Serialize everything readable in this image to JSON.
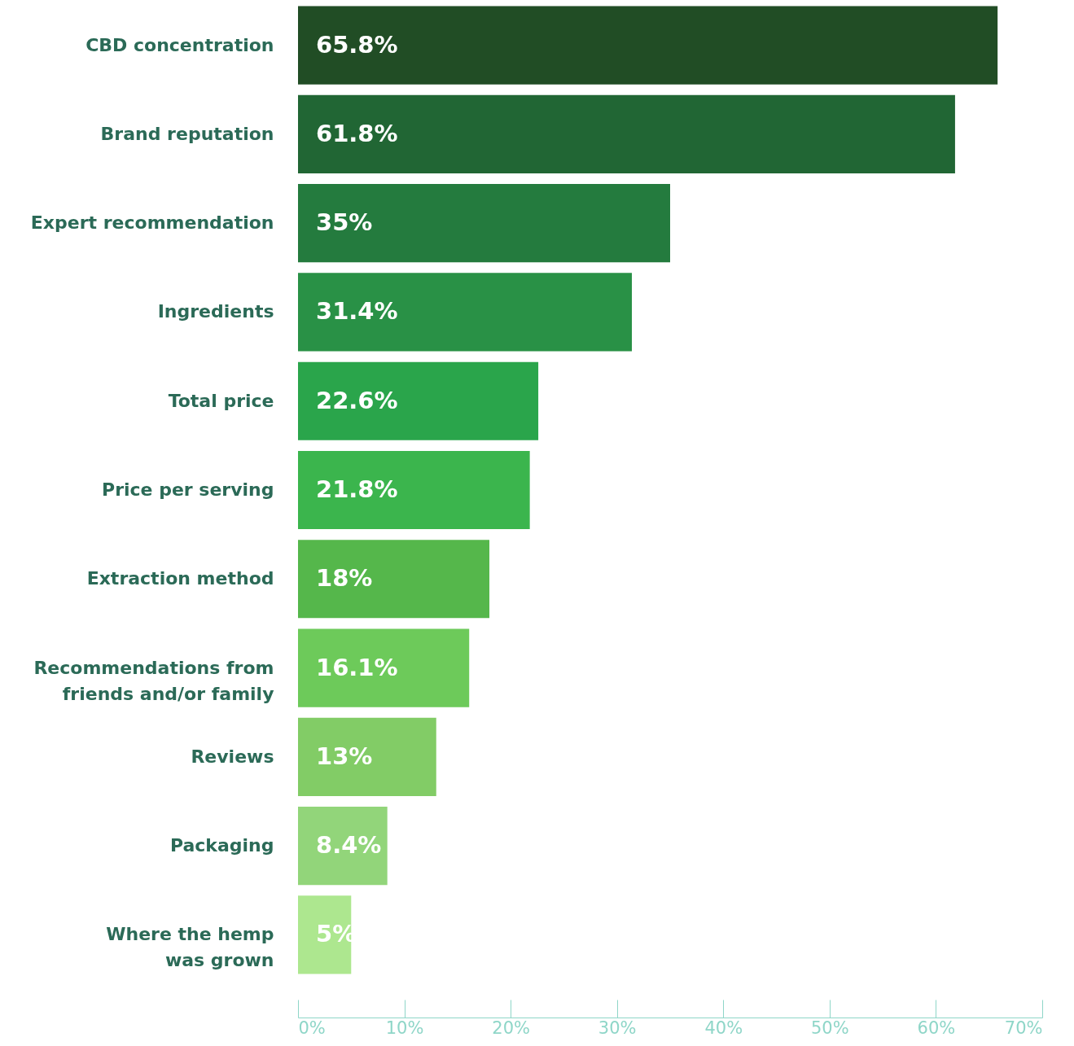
{
  "chart_data": {
    "type": "bar",
    "orientation": "horizontal",
    "categories": [
      "CBD concentration",
      "Brand reputation",
      "Expert recommendation",
      "Ingredients",
      "Total price",
      "Price per serving",
      "Extraction method",
      "Recommendations from friends and/or family",
      "Reviews",
      "Packaging",
      "Where the hemp was grown"
    ],
    "values": [
      65.8,
      61.8,
      35,
      31.4,
      22.6,
      21.8,
      18,
      16.1,
      13,
      8.4,
      5
    ],
    "value_labels": [
      "65.8%",
      "61.8%",
      "35%",
      "31.4%",
      "22.6%",
      "21.8%",
      "18%",
      "16.1%",
      "13%",
      "8.4%",
      "5%"
    ],
    "colors": [
      "#214d25",
      "#216634",
      "#247b3e",
      "#299146",
      "#2aa54b",
      "#3bb54d",
      "#55b74b",
      "#6dca5a",
      "#82cc66",
      "#92d57a",
      "#ade78f"
    ],
    "xlim": [
      0,
      70
    ],
    "xticks": [
      {
        "value": 0,
        "label": "0%"
      },
      {
        "value": 10,
        "label": "10%"
      },
      {
        "value": 20,
        "label": "20%"
      },
      {
        "value": 30,
        "label": "30%"
      },
      {
        "value": 40,
        "label": "40%"
      },
      {
        "value": 50,
        "label": "50%"
      },
      {
        "value": 60,
        "label": "60%"
      },
      {
        "value": 70,
        "label": "70%"
      }
    ],
    "grid": false
  }
}
